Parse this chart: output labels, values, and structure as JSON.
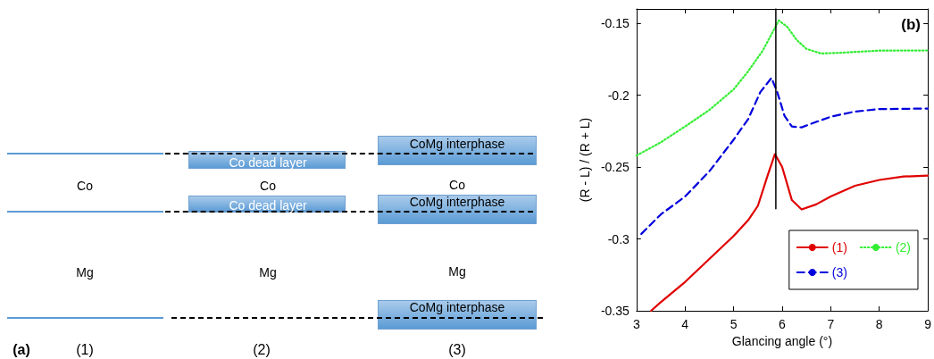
{
  "chart_data": [
    {
      "type": "other",
      "annotations": [
        "CoMg interphase",
        "Co dead layer",
        "Co",
        "Co",
        "Co",
        "Co dead layer",
        "CoMg interphase",
        "Mg",
        "Mg",
        "Mg",
        "CoMg interphase",
        "(a)",
        "(1)",
        "(2)",
        "(3)"
      ]
    },
    {
      "type": "line",
      "title": "(b)",
      "xlabel": "Glancing angle (°)",
      "ylabel": "(R - L) / (R + L)",
      "xlim": [
        3,
        9
      ],
      "xticks": [
        3,
        4,
        5,
        6,
        7,
        8,
        9
      ],
      "ylim": [
        -0.35,
        -0.14
      ],
      "yticks": [
        -0.35,
        -0.3,
        -0.25,
        -0.2,
        -0.15
      ],
      "grid": false,
      "legend": "bottom right",
      "marker": "none",
      "series": [
        {
          "name": "(1)",
          "color": "#e00000",
          "line_style": "solid",
          "x": [
            3.3,
            3.5,
            4,
            4.5,
            5,
            5.3,
            5.5,
            5.7,
            5.85,
            6,
            6.2,
            6.4,
            6.7,
            7,
            7.5,
            8,
            8.5,
            9
          ],
          "values": [
            -0.35,
            -0.344,
            -0.33,
            -0.314,
            -0.298,
            -0.287,
            -0.277,
            -0.256,
            -0.241,
            -0.25,
            -0.273,
            -0.2795,
            -0.276,
            -0.2705,
            -0.263,
            -0.259,
            -0.2566,
            -0.256
          ]
        },
        {
          "name": "(2)",
          "color": "#33ee33",
          "line_style": "dotted",
          "x": [
            3,
            3.5,
            4,
            4.5,
            5,
            5.3,
            5.6,
            5.8,
            5.93,
            6.1,
            6.3,
            6.5,
            6.8,
            7.2,
            8,
            9
          ],
          "values": [
            -0.242,
            -0.2328,
            -0.2218,
            -0.2103,
            -0.196,
            -0.1834,
            -0.169,
            -0.1564,
            -0.148,
            -0.1523,
            -0.1616,
            -0.1678,
            -0.171,
            -0.1705,
            -0.169,
            -0.1689
          ]
        },
        {
          "name": "(3)",
          "color": "#0000dd",
          "line_style": "dashed",
          "x": [
            3.1,
            3.5,
            4,
            4.5,
            5,
            5.3,
            5.55,
            5.78,
            5.9,
            6.05,
            6.2,
            6.4,
            6.7,
            7,
            7.5,
            8,
            9
          ],
          "values": [
            -0.2965,
            -0.283,
            -0.2705,
            -0.253,
            -0.231,
            -0.2166,
            -0.1979,
            -0.188,
            -0.198,
            -0.2145,
            -0.2218,
            -0.2224,
            -0.2186,
            -0.215,
            -0.2114,
            -0.2097,
            -0.2093
          ]
        },
        {
          "color": "#000000",
          "line_style": "solid",
          "x": [
            5.87,
            5.87
          ],
          "values": [
            -0.14,
            -0.279
          ]
        }
      ]
    }
  ]
}
